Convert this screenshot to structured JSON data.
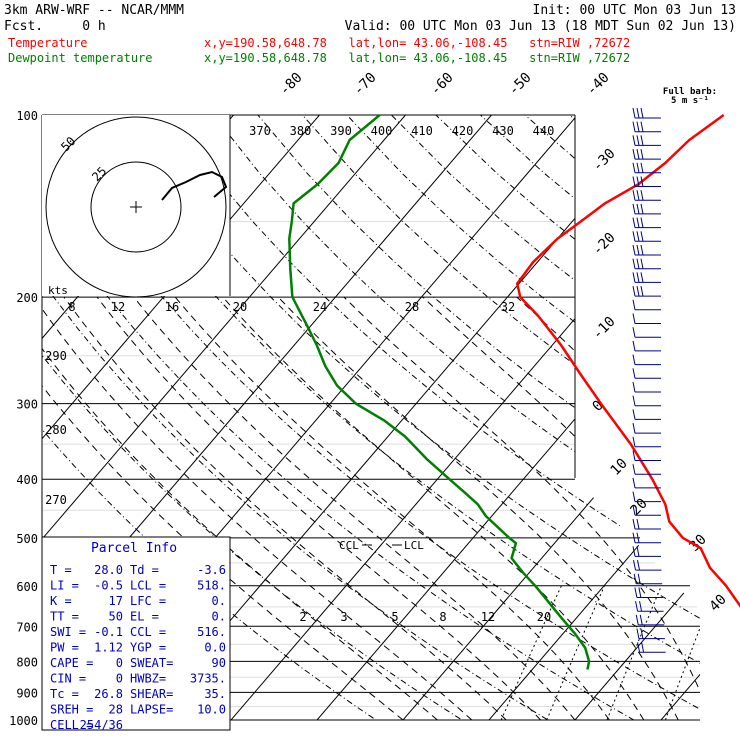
{
  "header": {
    "model": "3km ARW-WRF -- NCAR/MMM",
    "init": "Init: 00 UTC Mon 03 Jun 13",
    "fcst": "Fcst.     0 h",
    "valid": "Valid: 00 UTC Mon 03 Jun 13 (18 MDT Sun 02 Jun 13)",
    "temp_label": "Temperature",
    "dew_label": "Dewpoint temperature",
    "loc_text": "x,y=190.58,648.78   lat,lon= 43.06,-108.45   stn=RIW ,72672"
  },
  "colors": {
    "temperature": "#ff0000",
    "dewpoint": "#008000",
    "axes": "#000000",
    "parcel_title": "#0000c0"
  },
  "chart_data": {
    "type": "line",
    "diagram": "skew-T log-p",
    "pressure_levels": [
      100,
      200,
      300,
      400,
      500,
      600,
      700,
      800,
      900,
      1000
    ],
    "isotherm_labels": [
      "-80",
      "-70",
      "-60",
      "-50",
      "-40",
      "-30",
      "-20",
      "-10",
      "0",
      "10",
      "20",
      "30",
      "40"
    ],
    "theta_labels": [
      "370",
      "380",
      "390",
      "400",
      "410",
      "420",
      "430",
      "440"
    ],
    "theta_left_labels": [
      "290",
      "280",
      "270"
    ],
    "mixing_ratio_labels": [
      "2",
      "3",
      "5",
      "8",
      "12",
      "20"
    ],
    "hodograph": {
      "units_label": "kts",
      "ring_labels": [
        "25",
        "50"
      ],
      "speed_ticks": [
        "8",
        "12",
        "16",
        "20",
        "24",
        "28",
        "32"
      ]
    },
    "barb_legend": "Full barb:\n5 m s⁻¹",
    "ccl_label": "CCL",
    "lcl_label": "LCL",
    "series": [
      {
        "name": "Temperature",
        "color": "#ff0000",
        "points": [
          [
            825,
            28.0
          ],
          [
            800,
            24.0
          ],
          [
            770,
            20.5
          ],
          [
            740,
            17.0
          ],
          [
            700,
            13.0
          ],
          [
            650,
            8.0
          ],
          [
            600,
            4.2
          ],
          [
            560,
            0.5
          ],
          [
            520,
            -2.5
          ],
          [
            500,
            -5.6
          ],
          [
            470,
            -8.8
          ],
          [
            440,
            -11.0
          ],
          [
            400,
            -15.0
          ],
          [
            350,
            -21.0
          ],
          [
            300,
            -28.5
          ],
          [
            270,
            -33.5
          ],
          [
            240,
            -39.0
          ],
          [
            215,
            -44.5
          ],
          [
            200,
            -48.5
          ],
          [
            190,
            -50.2
          ],
          [
            175,
            -50.5
          ],
          [
            160,
            -50.0
          ],
          [
            150,
            -49.0
          ],
          [
            140,
            -48.0
          ],
          [
            130,
            -46.0
          ],
          [
            120,
            -45.0
          ],
          [
            110,
            -44.5
          ],
          [
            100,
            -43.0
          ]
        ]
      },
      {
        "name": "Dewpoint temperature",
        "color": "#008000",
        "points": [
          [
            825,
            -3.6
          ],
          [
            800,
            -4.2
          ],
          [
            760,
            -6.0
          ],
          [
            720,
            -8.6
          ],
          [
            680,
            -11.6
          ],
          [
            640,
            -14.7
          ],
          [
            600,
            -18.0
          ],
          [
            570,
            -20.8
          ],
          [
            540,
            -23.5
          ],
          [
            510,
            -24.5
          ],
          [
            500,
            -25.8
          ],
          [
            480,
            -28.2
          ],
          [
            460,
            -30.7
          ],
          [
            440,
            -32.8
          ],
          [
            420,
            -35.6
          ],
          [
            400,
            -38.6
          ],
          [
            370,
            -43.3
          ],
          [
            340,
            -48.0
          ],
          [
            320,
            -52.0
          ],
          [
            300,
            -57.0
          ],
          [
            280,
            -61.0
          ],
          [
            260,
            -64.3
          ],
          [
            240,
            -67.4
          ],
          [
            220,
            -71.0
          ],
          [
            200,
            -75.0
          ],
          [
            180,
            -78.0
          ],
          [
            160,
            -81.2
          ],
          [
            150,
            -82.6
          ],
          [
            140,
            -84.2
          ],
          [
            130,
            -83.3
          ],
          [
            120,
            -83.0
          ],
          [
            110,
            -84.0
          ],
          [
            100,
            -83.0
          ]
        ]
      }
    ]
  },
  "parcel_info": {
    "title": "Parcel Info",
    "rows": [
      {
        "l1": "T  =",
        "v1": "28.0",
        "l2": "Td =",
        "v2": "-3.6"
      },
      {
        "l1": "LI =",
        "v1": "-0.5",
        "l2": "LCL =",
        "v2": "518."
      },
      {
        "l1": "K  =",
        "v1": "17",
        "l2": "LFC =",
        "v2": "0."
      },
      {
        "l1": "TT =",
        "v1": "50",
        "l2": "EL  =",
        "v2": "0."
      },
      {
        "l1": "SWI =",
        "v1": "-0.1",
        "l2": "CCL =",
        "v2": "516."
      },
      {
        "l1": "PW =",
        "v1": "1.12",
        "l2": "YGP =",
        "v2": "0.0"
      },
      {
        "l1": "CAPE =",
        "v1": "0",
        "l2": "SWEAT=",
        "v2": "90"
      },
      {
        "l1": "CIN =",
        "v1": "0",
        "l2": "HWBZ=",
        "v2": "3735."
      },
      {
        "l1": "Tc =",
        "v1": "26.8",
        "l2": "SHEAR=",
        "v2": "35."
      },
      {
        "l1": "SREH =",
        "v1": "28",
        "l2": "LAPSE=",
        "v2": "10.0"
      },
      {
        "l1": "CELL =",
        "v1": "254/36",
        "l2": "",
        "v2": ""
      }
    ]
  }
}
